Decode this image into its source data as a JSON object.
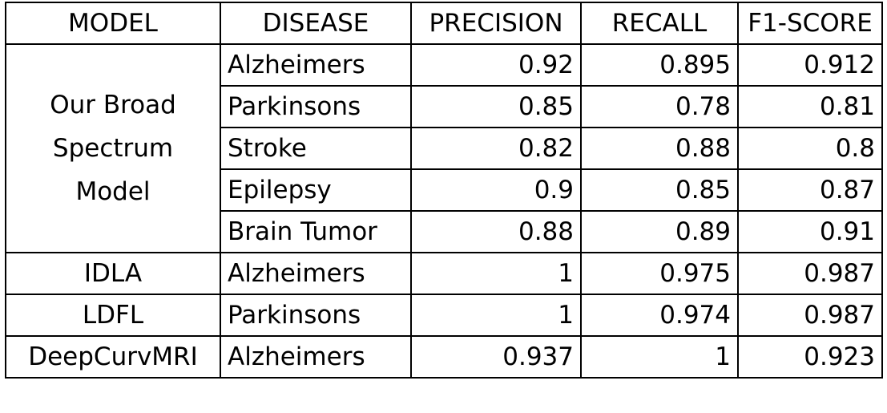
{
  "headers": [
    "MODEL",
    "DISEASE",
    "PRECISION",
    "RECALL",
    "F1-SCORE"
  ],
  "groups": [
    {
      "model": [
        "Our Broad",
        "Spectrum",
        "Model"
      ],
      "rows": [
        {
          "disease": "Alzheimers",
          "precision": "0.92",
          "recall": "0.895",
          "f1": "0.912"
        },
        {
          "disease": "Parkinsons",
          "precision": "0.85",
          "recall": "0.78",
          "f1": "0.81"
        },
        {
          "disease": "Stroke",
          "precision": "0.82",
          "recall": "0.88",
          "f1": "0.8"
        },
        {
          "disease": "Epilepsy",
          "precision": "0.9",
          "recall": "0.85",
          "f1": "0.87"
        },
        {
          "disease": "Brain Tumor",
          "precision": "0.88",
          "recall": "0.89",
          "f1": "0.91"
        }
      ]
    },
    {
      "model": [
        "IDLA"
      ],
      "rows": [
        {
          "disease": "Alzheimers",
          "precision": "1",
          "recall": "0.975",
          "f1": "0.987"
        }
      ]
    },
    {
      "model": [
        "LDFL"
      ],
      "rows": [
        {
          "disease": "Parkinsons",
          "precision": "1",
          "recall": "0.974",
          "f1": "0.987"
        }
      ]
    },
    {
      "model": [
        "DeepCurvMRI"
      ],
      "rows": [
        {
          "disease": "Alzheimers",
          "precision": "0.937",
          "recall": "1",
          "f1": "0.923"
        }
      ]
    }
  ]
}
